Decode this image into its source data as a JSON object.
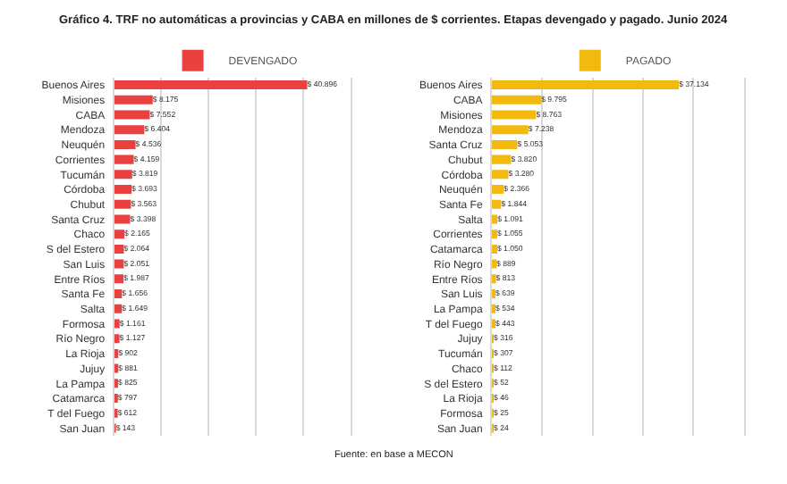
{
  "chart_data": [
    {
      "type": "bar",
      "orientation": "horizontal",
      "title": "Gráfico 4. TRF no automáticas a provincias y CABA en millones de $ corrientes. Etapas devengado y pagado. Junio 2024",
      "categories": [
        "Buenos Aires",
        "Misiones",
        "CABA",
        "Mendoza",
        "Neuquén",
        "Corrientes",
        "Tucumán",
        "Córdoba",
        "Chubut",
        "Santa Cruz",
        "Chaco",
        "S del Estero",
        "San Luis",
        "Entre Ríos",
        "Santa Fe",
        "Salta",
        "Formosa",
        "Río Negro",
        "La Rioja",
        "Jujuy",
        "La Pampa",
        "Catamarca",
        "T del Fuego",
        "San Juan"
      ],
      "series": [
        {
          "name": "DEVENGADO",
          "color": "#e8413f",
          "values": [
            40896,
            8175,
            7552,
            6404,
            4536,
            4159,
            3819,
            3693,
            3563,
            3398,
            2165,
            2064,
            2051,
            1987,
            1656,
            1649,
            1161,
            1127,
            902,
            881,
            825,
            797,
            612,
            143
          ],
          "value_labels": [
            "$ 40.896",
            "$ 8.175",
            "$ 7.552",
            "$ 6.404",
            "$ 4.536",
            "$ 4.159",
            "$ 3.819",
            "$ 3.693",
            "$ 3.563",
            "$ 3.398",
            "$ 2.165",
            "$ 2.064",
            "$ 2.051",
            "$ 1.987",
            "$ 1.656",
            "$ 1.649",
            "$ 1.161",
            "$ 1.127",
            "$ 902",
            "$ 881",
            "$ 825",
            "$ 797",
            "$ 612",
            "$ 143"
          ]
        }
      ],
      "xlim": [
        0,
        50000
      ],
      "xticks": [
        {
          "value": 0,
          "label": null
        },
        {
          "value": 10000,
          "label": null
        },
        {
          "value": 20000,
          "label": null
        },
        {
          "value": 30000,
          "label": null
        },
        {
          "value": 40000,
          "label": null
        },
        {
          "value": 50000,
          "label": null
        }
      ],
      "tick_labels": "y",
      "grid": "x",
      "legend": "top"
    },
    {
      "type": "bar",
      "orientation": "horizontal",
      "categories": [
        "Buenos Aires",
        "CABA",
        "Misiones",
        "Mendoza",
        "Santa Cruz",
        "Chubut",
        "Córdoba",
        "Neuquén",
        "Santa Fe",
        "Salta",
        "Corrientes",
        "Catamarca",
        "Río Negro",
        "Entre Ríos",
        "San Luis",
        "La Pampa",
        "T del Fuego",
        "Jujuy",
        "Tucumán",
        "Chaco",
        "S del Estero",
        "La Rioja",
        "Formosa",
        "San Juan"
      ],
      "series": [
        {
          "name": "PAGADO",
          "color": "#f2b90f",
          "values": [
            37134,
            9795,
            8763,
            7238,
            5053,
            3820,
            3280,
            2366,
            1844,
            1091,
            1055,
            1050,
            889,
            813,
            639,
            534,
            443,
            316,
            307,
            112,
            52,
            46,
            25,
            24
          ],
          "value_labels": [
            "$ 37.134",
            "$ 9.795",
            "$ 8.763",
            "$ 7.238",
            "$ 5.053",
            "$ 3.820",
            "$ 3.280",
            "$ 2.366",
            "$ 1.844",
            "$ 1.091",
            "$ 1.055",
            "$ 1.050",
            "$ 889",
            "$ 813",
            "$ 639",
            "$ 534",
            "$ 443",
            "$ 316",
            "$ 307",
            "$ 112",
            "$ 52",
            "$ 46",
            "$ 25",
            "$ 24"
          ]
        }
      ],
      "xlim": [
        0,
        50000
      ],
      "xticks": [
        {
          "value": 0,
          "label": null
        },
        {
          "value": 10000,
          "label": null
        },
        {
          "value": 20000,
          "label": null
        },
        {
          "value": 30000,
          "label": null
        },
        {
          "value": 40000,
          "label": null
        },
        {
          "value": 50000,
          "label": null
        }
      ],
      "tick_labels": "y",
      "grid": "x",
      "legend": "top",
      "annotations": [
        "Fuente: en base a MECON"
      ]
    }
  ]
}
